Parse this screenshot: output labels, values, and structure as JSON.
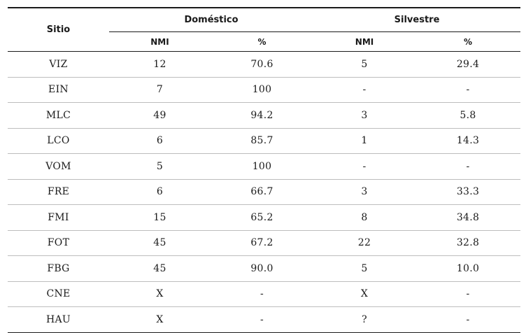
{
  "table": {
    "headers": {
      "sitio": "Sitio",
      "domestico": "Doméstico",
      "silvestre": "Silvestre",
      "dom_nmi": "NMI",
      "dom_pct": "%",
      "sil_nmi": "NMI",
      "sil_pct": "%"
    },
    "rows": [
      {
        "sitio": "VIZ",
        "dom_nmi": "12",
        "dom_pct": "70.6",
        "sil_nmi": "5",
        "sil_pct": "29.4"
      },
      {
        "sitio": "EIN",
        "dom_nmi": "7",
        "dom_pct": "100",
        "sil_nmi": "-",
        "sil_pct": "-"
      },
      {
        "sitio": "MLC",
        "dom_nmi": "49",
        "dom_pct": "94.2",
        "sil_nmi": "3",
        "sil_pct": "5.8"
      },
      {
        "sitio": "LCO",
        "dom_nmi": "6",
        "dom_pct": "85.7",
        "sil_nmi": "1",
        "sil_pct": "14.3"
      },
      {
        "sitio": "VOM",
        "dom_nmi": "5",
        "dom_pct": "100",
        "sil_nmi": "-",
        "sil_pct": "-"
      },
      {
        "sitio": "FRE",
        "dom_nmi": "6",
        "dom_pct": "66.7",
        "sil_nmi": "3",
        "sil_pct": "33.3"
      },
      {
        "sitio": "FMI",
        "dom_nmi": "15",
        "dom_pct": "65.2",
        "sil_nmi": "8",
        "sil_pct": "34.8"
      },
      {
        "sitio": "FOT",
        "dom_nmi": "45",
        "dom_pct": "67.2",
        "sil_nmi": "22",
        "sil_pct": "32.8"
      },
      {
        "sitio": "FBG",
        "dom_nmi": "45",
        "dom_pct": "90.0",
        "sil_nmi": "5",
        "sil_pct": "10.0"
      },
      {
        "sitio": "CNE",
        "dom_nmi": "X",
        "dom_pct": "-",
        "sil_nmi": "X",
        "sil_pct": "-"
      },
      {
        "sitio": "HAU",
        "dom_nmi": "X",
        "dom_pct": "-",
        "sil_nmi": "?",
        "sil_pct": "-"
      }
    ]
  }
}
